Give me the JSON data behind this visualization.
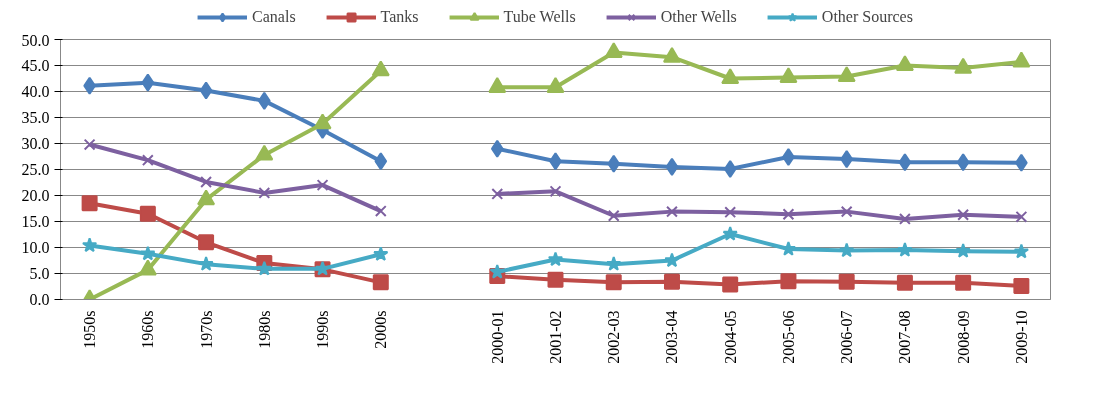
{
  "chart_data": {
    "type": "line",
    "categories": [
      "1950s",
      "1960s",
      "1970s",
      "1980s",
      "1990s",
      "2000s",
      null,
      "2000-01",
      "2001-02",
      "2002-03",
      "2003-04",
      "2004-05",
      "2005-06",
      "2006-07",
      "2007-08",
      "2008-09",
      "2009-10"
    ],
    "ylim": [
      0,
      50
    ],
    "yticks": [
      {
        "value": 0,
        "label": "0.0"
      },
      {
        "value": 5,
        "label": "5.0"
      },
      {
        "value": 10,
        "label": "10.0"
      },
      {
        "value": 15,
        "label": "15.0"
      },
      {
        "value": 20,
        "label": "20.0"
      },
      {
        "value": 25,
        "label": "25.0"
      },
      {
        "value": 30,
        "label": "30.0"
      },
      {
        "value": 35,
        "label": "35.0"
      },
      {
        "value": 40,
        "label": "40.0"
      },
      {
        "value": 45,
        "label": "45.0"
      },
      {
        "value": 50,
        "label": "50.0"
      }
    ],
    "grid": "y",
    "legend": "top",
    "series": [
      {
        "name": "Canals",
        "color": "#4a7ebb",
        "marker": "diamond",
        "values": [
          41.1,
          41.7,
          40.2,
          38.2,
          32.6,
          26.6,
          null,
          29.0,
          26.6,
          26.1,
          25.5,
          25.1,
          27.4,
          27.0,
          26.4,
          26.4,
          26.3
        ]
      },
      {
        "name": "Tanks",
        "color": "#be4b48",
        "marker": "square",
        "values": [
          18.5,
          16.5,
          11.0,
          7.0,
          5.8,
          3.3,
          null,
          4.5,
          3.8,
          3.3,
          3.4,
          2.9,
          3.5,
          3.4,
          3.2,
          3.2,
          2.6
        ]
      },
      {
        "name": "Tube Wells",
        "color": "#98b954",
        "marker": "triangle",
        "values": [
          0.0,
          5.7,
          19.2,
          27.8,
          33.8,
          44.0,
          null,
          40.8,
          40.8,
          47.5,
          46.6,
          42.5,
          42.7,
          42.9,
          45.0,
          44.5,
          45.7
        ]
      },
      {
        "name": "Other Wells",
        "color": "#7d60a0",
        "marker": "cross",
        "values": [
          29.8,
          26.8,
          22.6,
          20.5,
          22.0,
          17.0,
          null,
          20.3,
          20.8,
          16.1,
          16.9,
          16.8,
          16.4,
          16.9,
          15.5,
          16.3,
          15.9
        ]
      },
      {
        "name": "Other Sources",
        "color": "#46aac5",
        "marker": "star",
        "values": [
          10.4,
          8.8,
          6.8,
          5.9,
          5.9,
          8.7,
          null,
          5.3,
          7.7,
          6.8,
          7.5,
          12.6,
          9.7,
          9.4,
          9.5,
          9.3,
          9.2
        ]
      }
    ]
  }
}
